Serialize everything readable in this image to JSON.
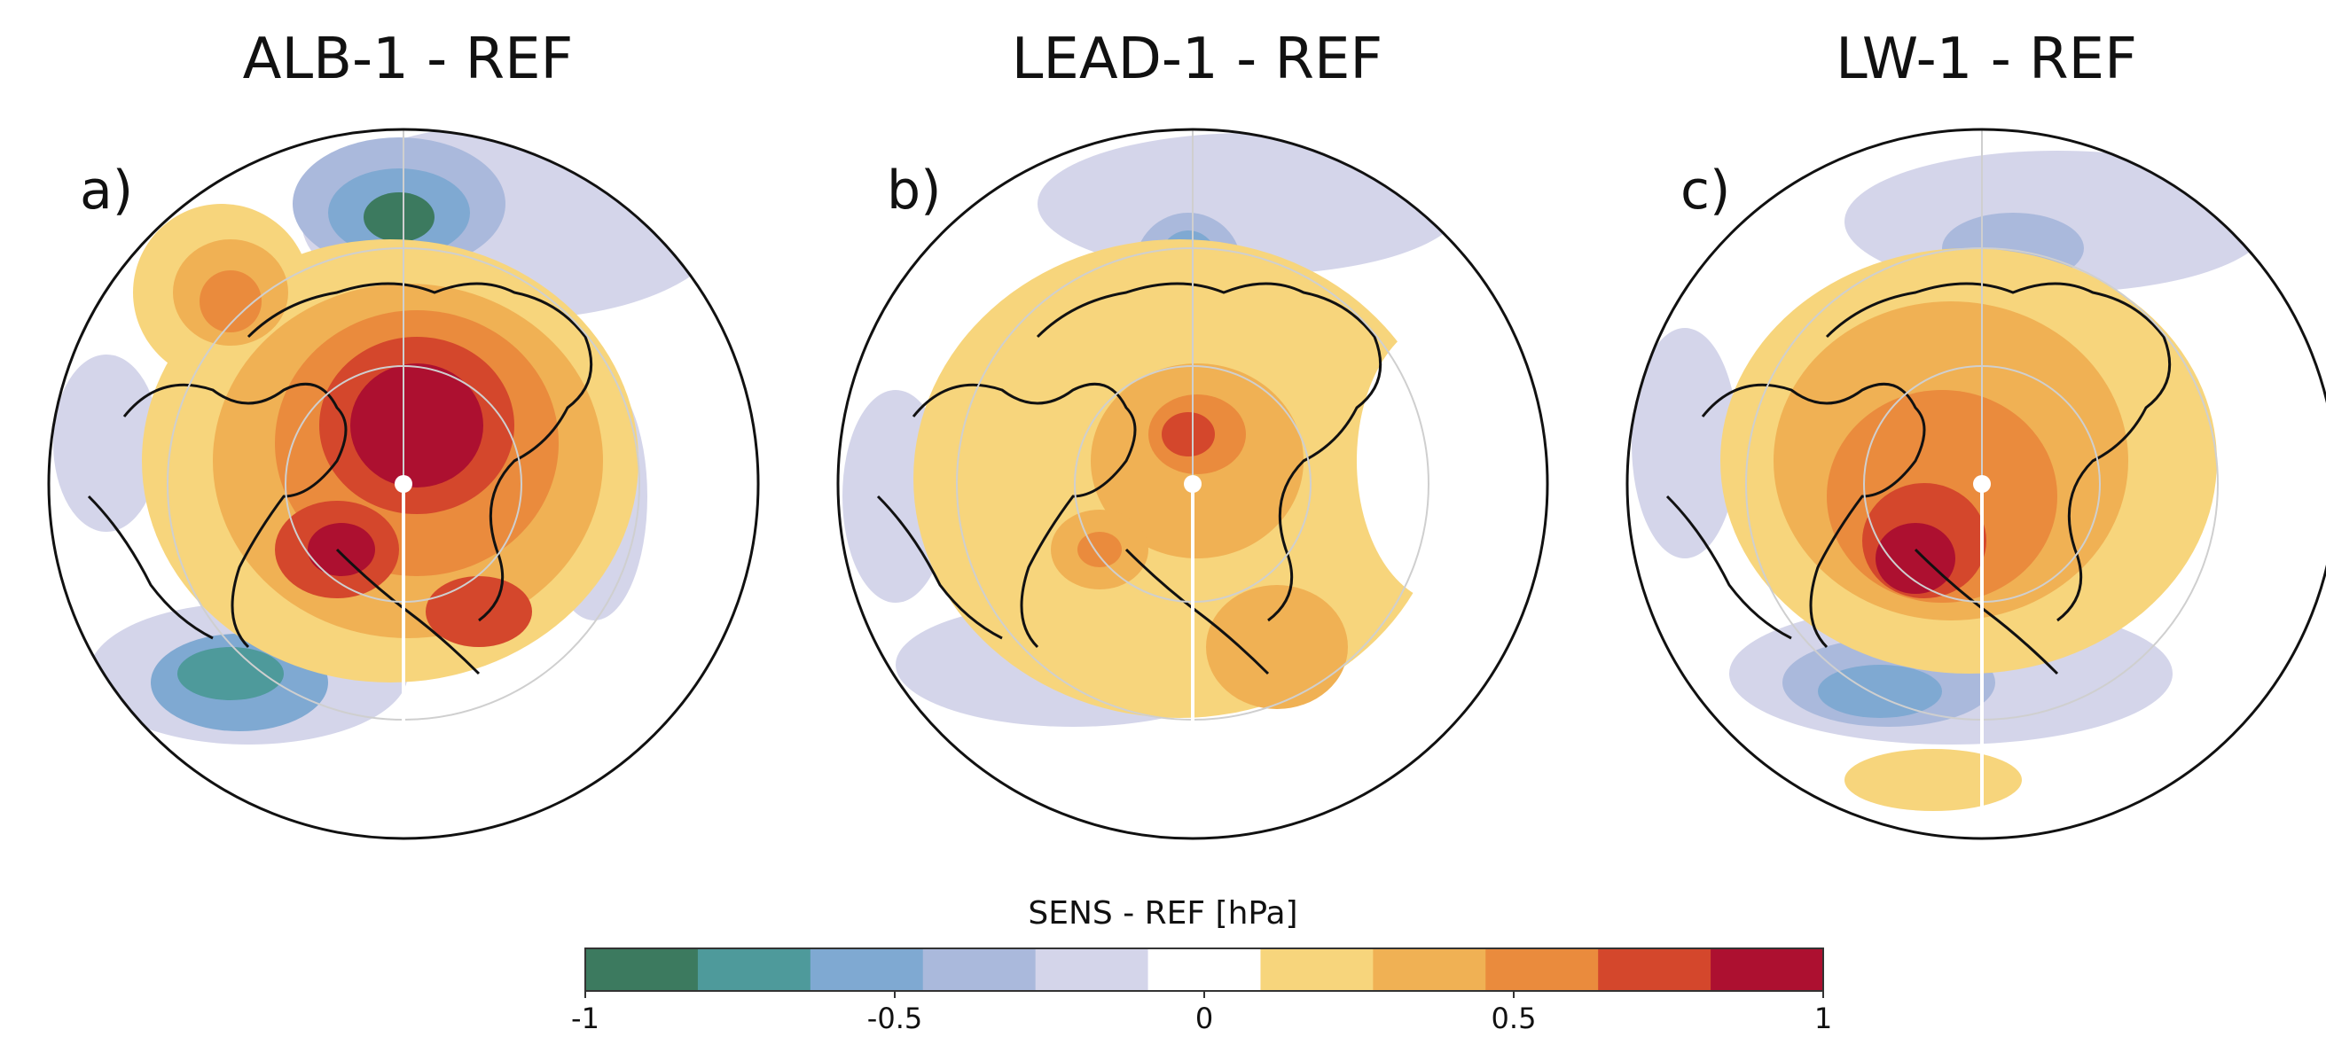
{
  "panels": [
    {
      "title": "ALB-1 - REF",
      "letter": "a)"
    },
    {
      "title": "LEAD-1 - REF",
      "letter": "b)"
    },
    {
      "title": "LW-1 - REF",
      "letter": "c)"
    }
  ],
  "colorbar": {
    "label": "SENS - REF [hPa]",
    "range": [
      -1,
      1
    ],
    "colors": [
      "#3c7a5f",
      "#4e9a9b",
      "#7fa9d2",
      "#aab9dc",
      "#d4d5ea",
      "#ffffff",
      "#f7d57c",
      "#f0b154",
      "#ea8b3d",
      "#d4472c",
      "#ad1030"
    ],
    "tick_labels": [
      "-1",
      "-0.5",
      "0",
      "0.5",
      "1"
    ],
    "tick_values": [
      -1,
      -0.5,
      0,
      0.5,
      1
    ]
  }
}
